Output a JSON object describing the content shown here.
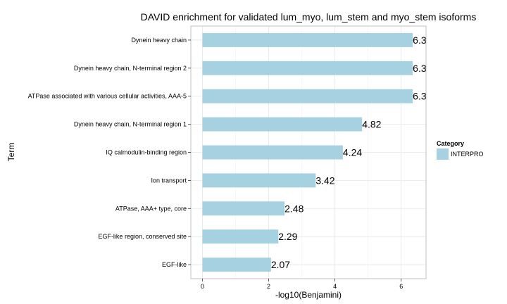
{
  "chart_data": {
    "type": "bar",
    "orientation": "horizontal",
    "title": "DAVID enrichment for validated lum_myo, lum_stem and myo_stem isoforms",
    "xlabel": "-log10(Benjamini)",
    "ylabel": "Term",
    "xlim": [
      -0.35,
      6.75
    ],
    "xticks": [
      0,
      2,
      4,
      6
    ],
    "grid": true,
    "legend_position": "right",
    "categories": [
      "Dynein heavy chain",
      "Dynein heavy chain, N-terminal region 2",
      "ATPase associated with various cellular activities, AAA-5",
      "Dynein heavy chain, N-terminal region 1",
      "IQ calmodulin-binding region",
      "Ion transport",
      "ATPase, AAA+ type, core",
      "EGF-like region, conserved site",
      "EGF-like"
    ],
    "values": [
      6.35,
      6.35,
      6.35,
      4.82,
      4.24,
      3.42,
      2.48,
      2.29,
      2.07
    ],
    "data_labels": [
      "6.3",
      "6.3",
      "6.3",
      "4.82",
      "4.24",
      "3.42",
      "2.48",
      "2.29",
      "2.07"
    ],
    "series": [
      {
        "name": "INTERPRO",
        "color": "#a6d1e0"
      }
    ],
    "legend": {
      "title": "Category",
      "items": [
        "INTERPRO"
      ]
    }
  }
}
